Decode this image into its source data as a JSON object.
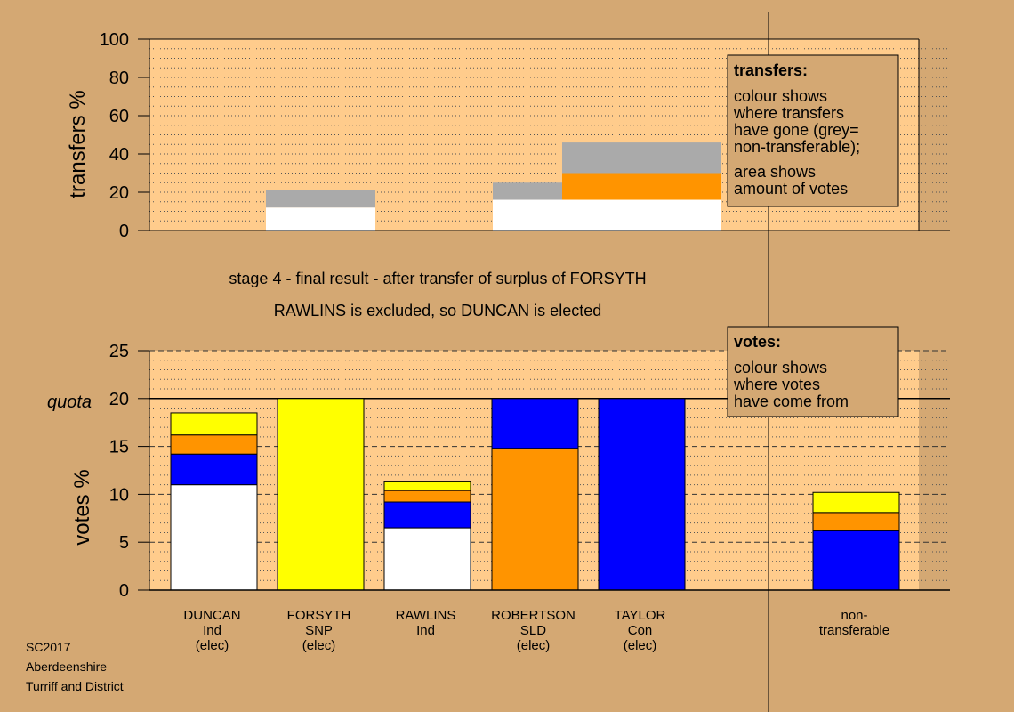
{
  "colors": {
    "background": "#d4a873",
    "plot_area": "#ffcc8c",
    "Ind": "#ffffff",
    "SNP": "#ffff00",
    "SLD": "#ff9400",
    "Con": "#0000ff",
    "non_transferable": "#aaaaaa"
  },
  "messages": {
    "line1": "stage 4 - final result - after transfer of surplus of FORSYTH",
    "line2": "RAWLINS is excluded, so DUNCAN is elected"
  },
  "footer": [
    "SC2017",
    "Aberdeenshire",
    "Turriff and District"
  ],
  "legends": {
    "transfers": {
      "title": "transfers:",
      "lines1": [
        "colour shows",
        "where transfers",
        "have gone (grey=",
        "non-transferable);"
      ],
      "lines2": [
        "area shows",
        "amount of votes"
      ]
    },
    "votes": {
      "title": "votes:",
      "lines": [
        "colour shows",
        "where votes",
        "have come from"
      ]
    }
  },
  "chart_data": [
    {
      "type": "bar",
      "name": "transfers",
      "ylabel": "transfers %",
      "ylim": [
        0,
        100
      ],
      "yticks": [
        0,
        20,
        40,
        60,
        80,
        100
      ],
      "grid": "dotted every 5",
      "transfers": [
        {
          "column": "DUNCAN",
          "segments": [
            {
              "party": "Ind",
              "from": 0,
              "to": 12
            },
            {
              "party": "non_transferable",
              "from": 12,
              "to": 21
            }
          ]
        },
        {
          "column": "RAWLINS",
          "segments": [
            {
              "party": "Ind",
              "from": 0,
              "to": 16
            },
            {
              "party": "non_transferable",
              "from": 16,
              "to": 25
            }
          ]
        },
        {
          "column": "ROBERTSON",
          "segments": [
            {
              "party": "Ind",
              "from": 0,
              "to": 16
            },
            {
              "party": "SLD",
              "from": 16,
              "to": 30
            },
            {
              "party": "non_transferable",
              "from": 30,
              "to": 46
            }
          ]
        }
      ]
    },
    {
      "type": "bar",
      "name": "votes",
      "ylabel": "votes %",
      "ylim": [
        0,
        25
      ],
      "yticks": [
        0,
        5,
        10,
        15,
        20,
        25
      ],
      "quota": {
        "label": "quota",
        "value": 20
      },
      "categories": [
        {
          "id": "DUNCAN",
          "label": [
            "DUNCAN",
            "Ind",
            "(elec)"
          ]
        },
        {
          "id": "FORSYTH",
          "label": [
            "FORSYTH",
            "SNP",
            "(elec)"
          ]
        },
        {
          "id": "RAWLINS",
          "label": [
            "RAWLINS",
            "Ind"
          ]
        },
        {
          "id": "ROBERTSON",
          "label": [
            "ROBERTSON",
            "SLD",
            "(elec)"
          ]
        },
        {
          "id": "TAYLOR",
          "label": [
            "TAYLOR",
            "Con",
            "(elec)"
          ]
        },
        {
          "id": "non-transferable",
          "label": [
            "non-",
            "transferable"
          ]
        }
      ],
      "stacks": [
        {
          "candidate": "DUNCAN",
          "segments": [
            {
              "party": "Ind",
              "value": 11.0
            },
            {
              "party": "Con",
              "value": 3.2
            },
            {
              "party": "SLD",
              "value": 2.0
            },
            {
              "party": "SNP",
              "value": 2.3
            }
          ]
        },
        {
          "candidate": "FORSYTH",
          "segments": [
            {
              "party": "SNP",
              "value": 20.0
            }
          ]
        },
        {
          "candidate": "RAWLINS",
          "segments": [
            {
              "party": "Ind",
              "value": 6.5
            },
            {
              "party": "Con",
              "value": 2.7
            },
            {
              "party": "SLD",
              "value": 1.2
            },
            {
              "party": "SNP",
              "value": 0.9
            }
          ]
        },
        {
          "candidate": "ROBERTSON",
          "segments": [
            {
              "party": "SLD",
              "value": 14.8
            },
            {
              "party": "Con",
              "value": 5.2
            }
          ]
        },
        {
          "candidate": "TAYLOR",
          "segments": [
            {
              "party": "Con",
              "value": 20.0
            }
          ]
        },
        {
          "candidate": "non-transferable",
          "segments": [
            {
              "party": "Con",
              "value": 6.2
            },
            {
              "party": "SLD",
              "value": 1.9
            },
            {
              "party": "SNP",
              "value": 2.1
            }
          ]
        }
      ]
    }
  ]
}
